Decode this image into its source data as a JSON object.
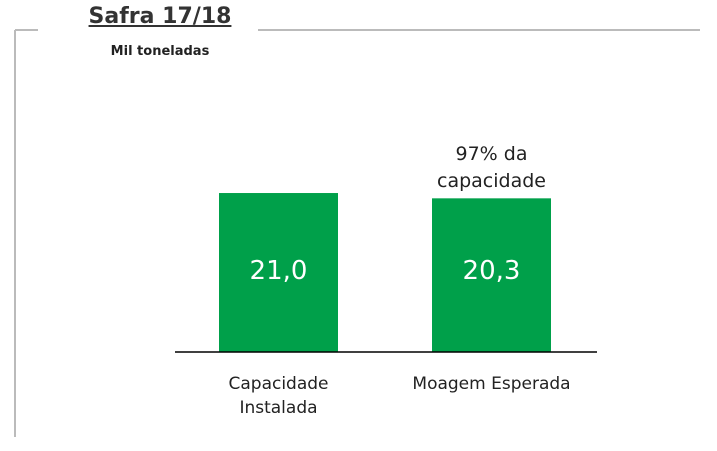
{
  "chart_data": {
    "type": "bar",
    "title": "Safra 17/18",
    "subtitle": "Mil toneladas",
    "categories": [
      "Capacidade Instalada",
      "Moagem Esperada"
    ],
    "values": [
      21.0,
      20.3
    ],
    "value_labels": [
      "21,0",
      "20,3"
    ],
    "color": "#00a04a",
    "annotations": [
      {
        "text": "97% da capacidade",
        "category": 1
      }
    ]
  }
}
